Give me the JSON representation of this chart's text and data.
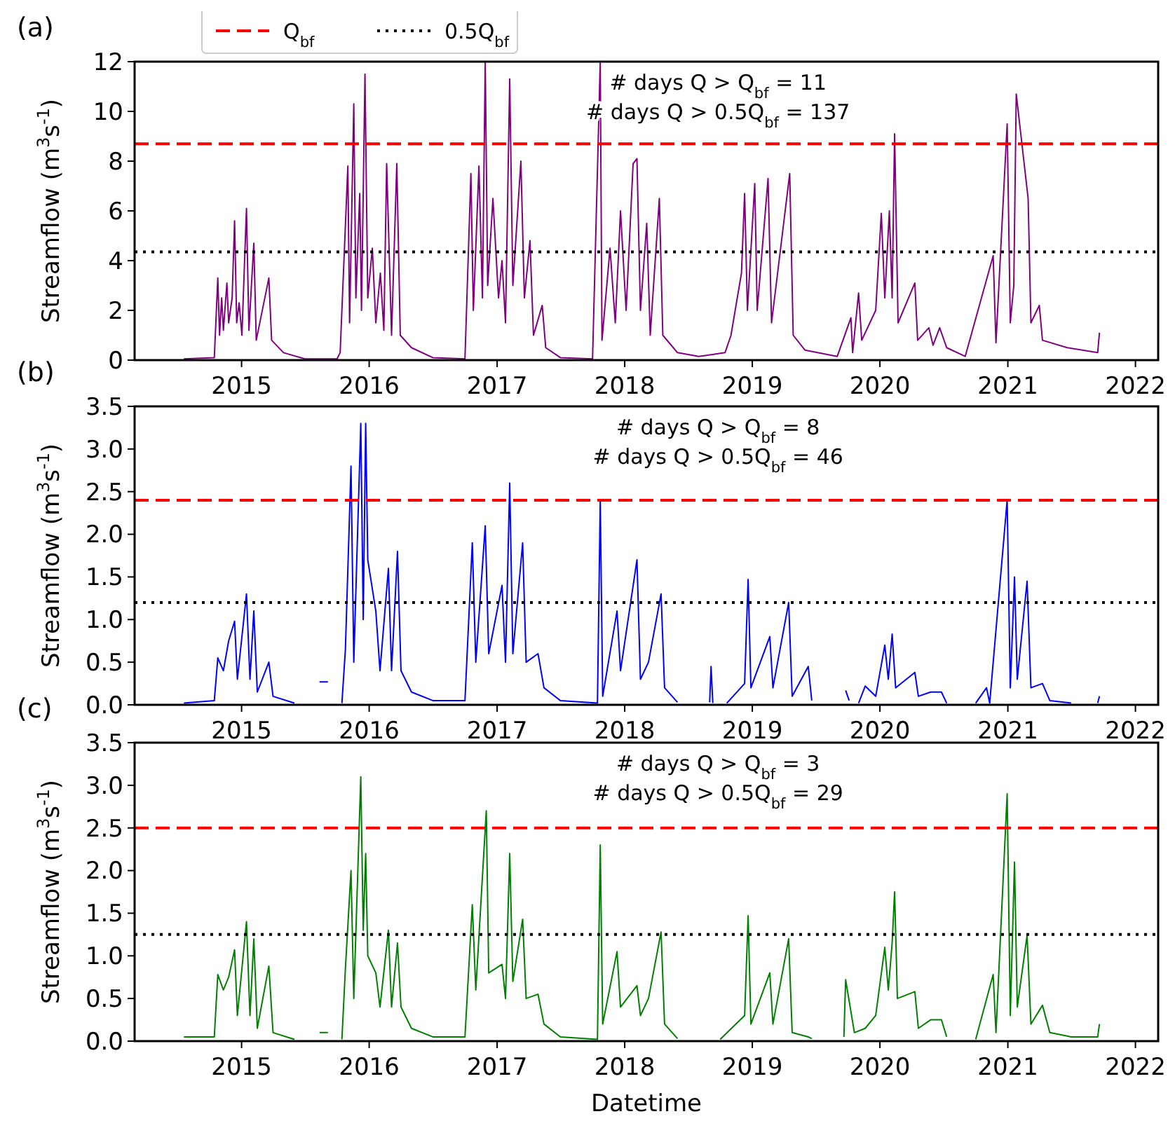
{
  "chart_data": [
    {
      "type": "line",
      "title": "(a)",
      "ylabel": "Streamflow (m$^{3}$s$^{-1}$)",
      "legend": "top left",
      "xlim": [
        "2014-03-01",
        "2022-03-07"
      ],
      "xticks": [
        "2015",
        "2016",
        "2017",
        "2018",
        "2019",
        "2020",
        "2021",
        "2022"
      ],
      "ylim": [
        0,
        12
      ],
      "yticks": [
        0,
        2,
        4,
        6,
        8,
        10,
        12
      ],
      "annotations": [
        "# days Q > Q$_{bf}$ = 11",
        "# days Q > 0.5Q$_{bf}$ = 137"
      ],
      "ref_lines": [
        {
          "axis": "y",
          "value": 8.7,
          "label": "Q$_{bf}$",
          "color": "#ff0000",
          "line_style": "dashed"
        },
        {
          "axis": "y",
          "value": 4.35,
          "label": "0.5Q$_{bf}$",
          "color": "#000000",
          "line_style": "dotted"
        }
      ],
      "series": [
        {
          "color": "#800080",
          "x": [
            "2014-07-20",
            "2014-10-15",
            "2014-10-25",
            "2014-10-30",
            "2014-11-05",
            "2014-11-10",
            "2014-11-20",
            "2014-11-25",
            "2014-12-05",
            "2014-12-12",
            "2014-12-18",
            "2014-12-25",
            "2015-01-02",
            "2015-01-15",
            "2015-01-22",
            "2015-02-05",
            "2015-02-12",
            "2015-03-20",
            "2015-03-28",
            "2015-05-01",
            "2015-07-01",
            "2015-10-01",
            "2015-10-10",
            "2015-11-01",
            "2015-11-06",
            "2015-11-18",
            "2015-11-24",
            "2015-12-05",
            "2015-12-10",
            "2015-12-20",
            "2015-12-28",
            "2016-01-10",
            "2016-01-20",
            "2016-02-02",
            "2016-02-12",
            "2016-02-20",
            "2016-03-05",
            "2016-03-20",
            "2016-03-30",
            "2016-05-01",
            "2016-07-01",
            "2016-10-01",
            "2016-10-18",
            "2016-10-25",
            "2016-11-10",
            "2016-11-20",
            "2016-11-28",
            "2016-12-05",
            "2016-12-20",
            "2017-01-05",
            "2017-01-15",
            "2017-01-25",
            "2017-02-06",
            "2017-02-15",
            "2017-03-10",
            "2017-03-20",
            "2017-04-05",
            "2017-04-15",
            "2017-05-10",
            "2017-05-20",
            "2017-07-01",
            "2017-10-01",
            "2017-10-23",
            "2017-10-28",
            "2017-11-20",
            "2017-12-05",
            "2017-12-20",
            "2018-01-05",
            "2018-01-25",
            "2018-02-05",
            "2018-02-15",
            "2018-03-05",
            "2018-03-15",
            "2018-04-10",
            "2018-04-20",
            "2018-06-01",
            "2018-08-01",
            "2018-10-15",
            "2018-11-01",
            "2018-12-01",
            "2018-12-10",
            "2018-12-18",
            "2019-01-08",
            "2019-01-15",
            "2019-02-15",
            "2019-02-25",
            "2019-04-18",
            "2019-04-28",
            "2019-06-01",
            "2019-09-01",
            "2019-10-10",
            "2019-10-15",
            "2019-11-01",
            "2019-11-10",
            "2019-12-20",
            "2020-01-05",
            "2020-01-15",
            "2020-01-28",
            "2020-02-05",
            "2020-02-12",
            "2020-02-22",
            "2020-04-10",
            "2020-04-18",
            "2020-05-20",
            "2020-06-01",
            "2020-06-20",
            "2020-07-10",
            "2020-09-01",
            "2020-11-20",
            "2020-11-28",
            "2020-12-30",
            "2021-01-08",
            "2021-01-18",
            "2021-01-25",
            "2021-02-28",
            "2021-03-08",
            "2021-04-01",
            "2021-04-10",
            "2021-06-20",
            "2021-09-15",
            "2021-09-20"
          ],
          "values": [
            0.05,
            0.1,
            3.3,
            1.0,
            2.5,
            1.2,
            3.1,
            1.5,
            2.5,
            5.6,
            1.5,
            2.3,
            1.0,
            6.1,
            1.2,
            4.7,
            0.8,
            3.3,
            0.8,
            0.3,
            0.05,
            0.05,
            0.3,
            7.8,
            1.5,
            10.3,
            2.5,
            6.7,
            2.0,
            11.5,
            2.5,
            4.5,
            1.5,
            3.5,
            1.2,
            7.9,
            1.0,
            7.9,
            1.0,
            0.5,
            0.1,
            0.05,
            7.5,
            2.0,
            7.8,
            2.5,
            12,
            3.0,
            6.5,
            2.5,
            4.0,
            1.5,
            11.3,
            3.0,
            8.0,
            2.5,
            4.8,
            1.0,
            2.2,
            0.5,
            0.1,
            0.05,
            12,
            0.8,
            4.5,
            1.5,
            6.0,
            2.0,
            7.9,
            8.1,
            2.0,
            5.5,
            1.0,
            6.5,
            1.0,
            0.3,
            0.15,
            0.3,
            1.0,
            3.5,
            6.7,
            2.0,
            7.1,
            2.0,
            7.3,
            1.5,
            7.5,
            1.0,
            0.4,
            0.15,
            1.7,
            0.3,
            2.7,
            0.8,
            2.0,
            5.9,
            2.5,
            6.0,
            2.5,
            9.1,
            1.5,
            3.1,
            0.8,
            1.3,
            0.6,
            1.3,
            0.5,
            0.15,
            4.2,
            0.7,
            9.5,
            1.5,
            3.0,
            10.7,
            6.5,
            1.5,
            2.2,
            0.8,
            0.5,
            0.3,
            1.1
          ]
        }
      ]
    },
    {
      "type": "line",
      "title": "(b)",
      "ylabel": "Streamflow (m$^{3}$s$^{-1}$)",
      "xlim": [
        "2014-03-01",
        "2022-03-07"
      ],
      "xticks": [
        "2015",
        "2016",
        "2017",
        "2018",
        "2019",
        "2020",
        "2021",
        "2022"
      ],
      "ylim": [
        0,
        3.5
      ],
      "yticks": [
        {
          "value": 0,
          "label": "0.0"
        },
        {
          "value": 0.5,
          "label": "0.5"
        },
        {
          "value": 1,
          "label": "1.0"
        },
        {
          "value": 1.5,
          "label": "1.5"
        },
        {
          "value": 2,
          "label": "2.0"
        },
        {
          "value": 2.5,
          "label": "2.5"
        },
        {
          "value": 3,
          "label": "3.0"
        },
        {
          "value": 3.5,
          "label": "3.5"
        }
      ],
      "annotations": [
        "# days Q > Q$_{bf}$ = 8",
        "# days Q > 0.5Q$_{bf}$ = 46"
      ],
      "ref_lines": [
        {
          "axis": "y",
          "value": 2.4,
          "color": "#ff0000",
          "line_style": "dashed"
        },
        {
          "axis": "y",
          "value": 1.2,
          "color": "#000000",
          "line_style": "dotted"
        }
      ],
      "series": [
        {
          "color": "#0000ff",
          "x": [
            "2014-07-20",
            "2014-10-15",
            "2014-10-25",
            "2014-11-10",
            "2014-11-25",
            "2014-12-12",
            "2014-12-20",
            "2015-01-15",
            "2015-01-25",
            "2015-02-05",
            "2015-02-15",
            "2015-03-20",
            "2015-04-01",
            "2015-06-01",
            "2015-07-01",
            "2015-08-12",
            "2015-09-05",
            "2015-09-10",
            "2015-10-15",
            "2015-10-25",
            "2015-11-10",
            "2015-11-18",
            "2015-12-08",
            "2015-12-15",
            "2015-12-22",
            "2015-12-28",
            "2016-01-20",
            "2016-02-01",
            "2016-02-25",
            "2016-03-05",
            "2016-03-22",
            "2016-04-01",
            "2016-05-01",
            "2016-07-01",
            "2016-10-01",
            "2016-10-22",
            "2016-11-01",
            "2016-11-28",
            "2016-12-08",
            "2017-01-15",
            "2017-01-25",
            "2017-02-06",
            "2017-02-15",
            "2017-03-15",
            "2017-03-25",
            "2017-04-28",
            "2017-05-15",
            "2017-07-01",
            "2017-10-15",
            "2017-10-23",
            "2017-10-30",
            "2017-12-10",
            "2017-12-20",
            "2018-02-05",
            "2018-02-15",
            "2018-03-10",
            "2018-04-15",
            "2018-04-25",
            "2018-06-01",
            "2018-07-15",
            "2018-09-01",
            "2018-09-05",
            "2018-09-10",
            "2018-09-25",
            "2018-10-20",
            "2018-12-10",
            "2018-12-20",
            "2018-12-28",
            "2019-02-20",
            "2019-03-01",
            "2019-04-15",
            "2019-04-25",
            "2019-06-10",
            "2019-06-20",
            "2019-08-01",
            "2019-09-25",
            "2019-10-05",
            "2019-10-20",
            "2019-11-01",
            "2019-11-20",
            "2019-12-20",
            "2020-01-15",
            "2020-01-25",
            "2020-02-05",
            "2020-02-15",
            "2020-04-10",
            "2020-04-20",
            "2020-05-25",
            "2020-06-25",
            "2020-07-10",
            "2020-08-15",
            "2020-10-01",
            "2020-11-01",
            "2020-11-10",
            "2020-12-30",
            "2021-01-08",
            "2021-01-20",
            "2021-01-28",
            "2021-02-25",
            "2021-03-08",
            "2021-04-10",
            "2021-05-01",
            "2021-07-01",
            "2021-08-01",
            "2021-09-15",
            "2021-09-20"
          ],
          "values": [
            0.02,
            0.05,
            0.55,
            0.4,
            0.75,
            0.98,
            0.3,
            1.3,
            0.3,
            1.1,
            0.15,
            0.5,
            0.1,
            0.02,
            null,
            0.27,
            0.27,
            null,
            0.02,
            0.65,
            2.8,
            0.5,
            3.3,
            1.0,
            3.3,
            1.7,
            1.1,
            0.4,
            1.6,
            0.4,
            1.8,
            0.4,
            0.15,
            0.05,
            0.05,
            1.9,
            0.5,
            2.1,
            0.6,
            1.4,
            0.5,
            2.6,
            0.6,
            1.9,
            0.5,
            0.6,
            0.2,
            0.05,
            0.02,
            2.4,
            0.1,
            1.1,
            0.4,
            1.7,
            0.3,
            0.5,
            1.3,
            0.2,
            0.03,
            null,
            0.03,
            0.45,
            0.02,
            null,
            0.02,
            0.25,
            1.47,
            0.2,
            0.8,
            0.2,
            1.2,
            0.1,
            0.45,
            0.05,
            null,
            0.17,
            0.05,
            null,
            0.02,
            0.22,
            0.1,
            0.7,
            0.3,
            0.83,
            0.2,
            0.38,
            0.1,
            0.15,
            0.15,
            0.02,
            null,
            0.02,
            0.2,
            0.02,
            2.4,
            0.2,
            1.5,
            0.3,
            1.45,
            0.2,
            0.25,
            0.05,
            0.02,
            null,
            0.02,
            0.1
          ]
        }
      ]
    },
    {
      "type": "line",
      "title": "(c)",
      "ylabel": "Streamflow (m$^{3}$s$^{-1}$)",
      "xlabel": "Datetime",
      "xlim": [
        "2014-03-01",
        "2022-03-07"
      ],
      "xticks": [
        "2015",
        "2016",
        "2017",
        "2018",
        "2019",
        "2020",
        "2021",
        "2022"
      ],
      "ylim": [
        0,
        3.5
      ],
      "yticks": [
        {
          "value": 0,
          "label": "0.0"
        },
        {
          "value": 0.5,
          "label": "0.5"
        },
        {
          "value": 1,
          "label": "1.0"
        },
        {
          "value": 1.5,
          "label": "1.5"
        },
        {
          "value": 2,
          "label": "2.0"
        },
        {
          "value": 2.5,
          "label": "2.5"
        },
        {
          "value": 3,
          "label": "3.0"
        },
        {
          "value": 3.5,
          "label": "3.5"
        }
      ],
      "annotations": [
        "# days Q > Q$_{bf}$ = 3",
        "# days Q > 0.5Q$_{bf}$ = 29"
      ],
      "ref_lines": [
        {
          "axis": "y",
          "value": 2.5,
          "color": "#ff0000",
          "line_style": "dashed"
        },
        {
          "axis": "y",
          "value": 1.25,
          "color": "#000000",
          "line_style": "dotted"
        }
      ],
      "series": [
        {
          "color": "#008000",
          "x": [
            "2014-07-20",
            "2014-10-15",
            "2014-10-25",
            "2014-11-10",
            "2014-11-25",
            "2014-12-12",
            "2014-12-20",
            "2015-01-15",
            "2015-01-25",
            "2015-02-05",
            "2015-02-15",
            "2015-03-20",
            "2015-04-01",
            "2015-06-01",
            "2015-07-01",
            "2015-08-12",
            "2015-09-05",
            "2015-09-10",
            "2015-10-15",
            "2015-10-25",
            "2015-11-10",
            "2015-11-18",
            "2015-12-08",
            "2015-12-15",
            "2015-12-22",
            "2015-12-28",
            "2016-01-20",
            "2016-02-01",
            "2016-02-25",
            "2016-03-05",
            "2016-03-22",
            "2016-04-01",
            "2016-05-01",
            "2016-07-01",
            "2016-10-01",
            "2016-10-22",
            "2016-11-01",
            "2016-12-01",
            "2016-12-08",
            "2017-01-15",
            "2017-01-25",
            "2017-02-06",
            "2017-02-15",
            "2017-03-15",
            "2017-03-25",
            "2017-04-28",
            "2017-05-15",
            "2017-07-01",
            "2017-10-15",
            "2017-10-23",
            "2017-10-30",
            "2017-12-10",
            "2017-12-20",
            "2018-02-05",
            "2018-02-15",
            "2018-03-10",
            "2018-04-15",
            "2018-04-25",
            "2018-06-01",
            "2018-07-15",
            "2018-10-01",
            "2018-12-10",
            "2018-12-20",
            "2018-12-28",
            "2019-02-20",
            "2019-03-01",
            "2019-04-15",
            "2019-04-25",
            "2019-06-10",
            "2019-06-20",
            "2019-07-01",
            "2019-09-20",
            "2019-09-25",
            "2019-10-20",
            "2019-11-20",
            "2019-12-20",
            "2020-01-15",
            "2020-01-25",
            "2020-02-05",
            "2020-02-12",
            "2020-02-20",
            "2020-04-10",
            "2020-04-20",
            "2020-05-25",
            "2020-06-25",
            "2020-07-10",
            "2020-08-15",
            "2020-10-01",
            "2020-11-20",
            "2020-11-28",
            "2020-12-30",
            "2021-01-08",
            "2021-01-20",
            "2021-01-28",
            "2021-02-25",
            "2021-03-08",
            "2021-04-10",
            "2021-05-01",
            "2021-07-01",
            "2021-09-15",
            "2021-09-20"
          ],
          "values": [
            0.05,
            0.05,
            0.78,
            0.6,
            0.75,
            1.07,
            0.3,
            1.4,
            0.3,
            1.2,
            0.15,
            0.88,
            0.1,
            0.02,
            null,
            0.1,
            0.1,
            null,
            0.02,
            0.85,
            2.0,
            0.5,
            3.1,
            1.3,
            2.2,
            1.0,
            0.8,
            0.4,
            1.3,
            0.4,
            1.15,
            0.4,
            0.15,
            0.05,
            0.05,
            1.6,
            0.6,
            2.7,
            0.8,
            0.9,
            0.5,
            2.2,
            0.7,
            1.43,
            0.5,
            0.55,
            0.2,
            0.05,
            0.02,
            2.3,
            0.2,
            1.05,
            0.4,
            0.65,
            0.3,
            0.5,
            1.28,
            0.2,
            0.03,
            null,
            0.02,
            0.3,
            1.47,
            0.2,
            0.8,
            0.2,
            1.2,
            0.1,
            0.05,
            0.03,
            null,
            0.05,
            0.72,
            0.1,
            0.15,
            0.3,
            1.1,
            0.6,
            1.15,
            1.75,
            0.5,
            0.58,
            0.15,
            0.25,
            0.25,
            0.05,
            null,
            0.02,
            0.78,
            0.1,
            2.9,
            0.3,
            2.1,
            0.4,
            1.24,
            0.2,
            0.42,
            0.1,
            0.05,
            0.05,
            0.2
          ]
        }
      ]
    }
  ]
}
